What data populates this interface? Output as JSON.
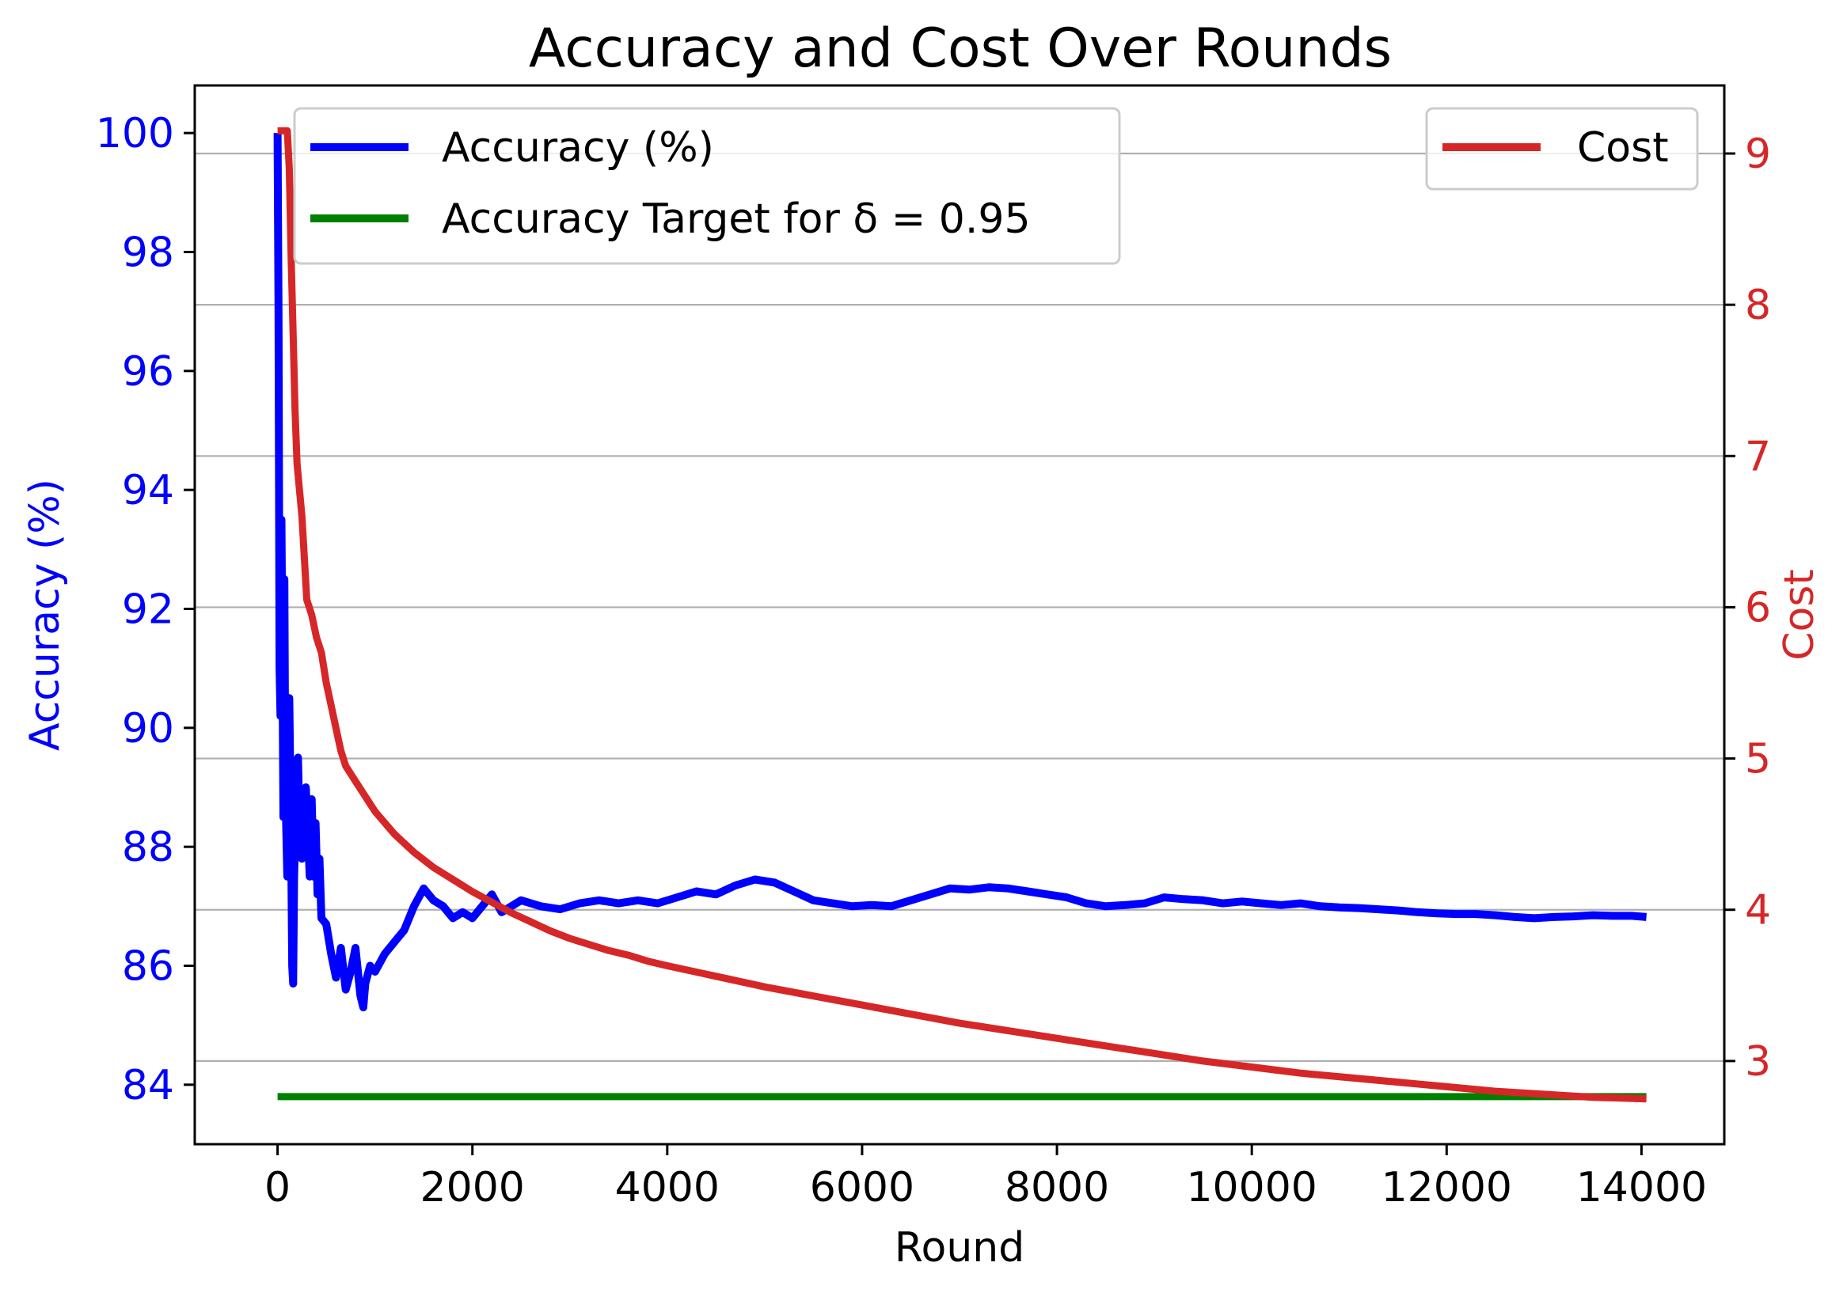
{
  "chart_data": {
    "type": "line",
    "title": "Accuracy and Cost Over Rounds",
    "xlabel": "Round",
    "ylabel_left": "Accuracy (%)",
    "ylabel_right": "Cost",
    "xlim": [
      -850,
      14850
    ],
    "ylim_left": [
      83.0,
      100.8
    ],
    "ylim_right": [
      2.45,
      9.45
    ],
    "x_ticks": [
      0,
      2000,
      4000,
      6000,
      8000,
      10000,
      12000,
      14000
    ],
    "x_tick_labels": [
      "0",
      "2000",
      "4000",
      "6000",
      "8000",
      "10000",
      "12000",
      "14000"
    ],
    "y_left_ticks": [
      84,
      86,
      88,
      90,
      92,
      94,
      96,
      98,
      100
    ],
    "y_left_tick_labels": [
      "84",
      "86",
      "88",
      "90",
      "92",
      "94",
      "96",
      "98",
      "100"
    ],
    "y_right_ticks": [
      3,
      4,
      5,
      6,
      7,
      8,
      9
    ],
    "y_right_tick_labels": [
      "3",
      "4",
      "5",
      "6",
      "7",
      "8",
      "9"
    ],
    "grid": "horizontal, right axis ticks",
    "legends": [
      {
        "placement": "upper-left",
        "entries": [
          "Accuracy (%)",
          "Accuracy Target for δ = 0.95"
        ]
      },
      {
        "placement": "upper-right",
        "entries": [
          "Cost"
        ]
      }
    ],
    "colors": {
      "accuracy": "#0000ff",
      "target": "#008000",
      "cost": "#d62728",
      "grid": "#b0b0b0"
    },
    "series": [
      {
        "name": "Accuracy (%)",
        "axis": "left",
        "color": "#0000ff",
        "points": [
          [
            0,
            100.0
          ],
          [
            10,
            97.0
          ],
          [
            20,
            91.0
          ],
          [
            30,
            90.2
          ],
          [
            40,
            93.5
          ],
          [
            50,
            91.0
          ],
          [
            60,
            88.5
          ],
          [
            70,
            92.5
          ],
          [
            80,
            89.0
          ],
          [
            100,
            87.5
          ],
          [
            120,
            90.5
          ],
          [
            140,
            88.0
          ],
          [
            150,
            86.0
          ],
          [
            160,
            85.7
          ],
          [
            170,
            87.5
          ],
          [
            190,
            88.8
          ],
          [
            210,
            89.5
          ],
          [
            230,
            88.0
          ],
          [
            250,
            87.8
          ],
          [
            270,
            88.3
          ],
          [
            290,
            89.0
          ],
          [
            310,
            88.3
          ],
          [
            330,
            87.5
          ],
          [
            350,
            88.8
          ],
          [
            370,
            87.5
          ],
          [
            390,
            88.4
          ],
          [
            410,
            87.2
          ],
          [
            430,
            87.8
          ],
          [
            450,
            86.8
          ],
          [
            500,
            86.7
          ],
          [
            550,
            86.2
          ],
          [
            600,
            85.8
          ],
          [
            650,
            86.3
          ],
          [
            700,
            85.6
          ],
          [
            750,
            85.9
          ],
          [
            800,
            86.3
          ],
          [
            850,
            85.5
          ],
          [
            880,
            85.3
          ],
          [
            900,
            85.7
          ],
          [
            950,
            86.0
          ],
          [
            1000,
            85.9
          ],
          [
            1100,
            86.2
          ],
          [
            1200,
            86.4
          ],
          [
            1300,
            86.6
          ],
          [
            1400,
            87.0
          ],
          [
            1500,
            87.3
          ],
          [
            1600,
            87.1
          ],
          [
            1700,
            87.0
          ],
          [
            1800,
            86.8
          ],
          [
            1900,
            86.9
          ],
          [
            2000,
            86.8
          ],
          [
            2100,
            87.0
          ],
          [
            2200,
            87.2
          ],
          [
            2300,
            86.9
          ],
          [
            2400,
            87.0
          ],
          [
            2500,
            87.1
          ],
          [
            2700,
            87.0
          ],
          [
            2900,
            86.95
          ],
          [
            3100,
            87.05
          ],
          [
            3300,
            87.1
          ],
          [
            3500,
            87.05
          ],
          [
            3700,
            87.1
          ],
          [
            3900,
            87.05
          ],
          [
            4100,
            87.15
          ],
          [
            4300,
            87.25
          ],
          [
            4500,
            87.2
          ],
          [
            4700,
            87.35
          ],
          [
            4900,
            87.45
          ],
          [
            5100,
            87.4
          ],
          [
            5300,
            87.25
          ],
          [
            5500,
            87.1
          ],
          [
            5700,
            87.05
          ],
          [
            5900,
            87.0
          ],
          [
            6100,
            87.02
          ],
          [
            6300,
            87.0
          ],
          [
            6500,
            87.1
          ],
          [
            6700,
            87.2
          ],
          [
            6900,
            87.3
          ],
          [
            7100,
            87.28
          ],
          [
            7300,
            87.32
          ],
          [
            7500,
            87.3
          ],
          [
            7700,
            87.25
          ],
          [
            7900,
            87.2
          ],
          [
            8100,
            87.15
          ],
          [
            8300,
            87.05
          ],
          [
            8500,
            87.0
          ],
          [
            8700,
            87.02
          ],
          [
            8900,
            87.05
          ],
          [
            9100,
            87.15
          ],
          [
            9300,
            87.12
          ],
          [
            9500,
            87.1
          ],
          [
            9700,
            87.05
          ],
          [
            9900,
            87.08
          ],
          [
            10100,
            87.05
          ],
          [
            10300,
            87.02
          ],
          [
            10500,
            87.05
          ],
          [
            10700,
            87.0
          ],
          [
            10900,
            86.98
          ],
          [
            11100,
            86.97
          ],
          [
            11300,
            86.95
          ],
          [
            11500,
            86.93
          ],
          [
            11700,
            86.9
          ],
          [
            11900,
            86.88
          ],
          [
            12100,
            86.87
          ],
          [
            12300,
            86.87
          ],
          [
            12500,
            86.85
          ],
          [
            12700,
            86.82
          ],
          [
            12900,
            86.8
          ],
          [
            13100,
            86.82
          ],
          [
            13300,
            86.83
          ],
          [
            13500,
            86.85
          ],
          [
            13700,
            86.84
          ],
          [
            13900,
            86.84
          ],
          [
            14050,
            86.82
          ]
        ]
      },
      {
        "name": "Accuracy Target for δ = 0.95",
        "axis": "left",
        "color": "#008000",
        "points": [
          [
            0,
            83.8
          ],
          [
            14050,
            83.8
          ]
        ]
      },
      {
        "name": "Cost",
        "axis": "right",
        "color": "#d62728",
        "points": [
          [
            0,
            9.15
          ],
          [
            50,
            9.15
          ],
          [
            100,
            9.15
          ],
          [
            120,
            8.9
          ],
          [
            140,
            8.3
          ],
          [
            160,
            7.8
          ],
          [
            180,
            7.3
          ],
          [
            200,
            6.95
          ],
          [
            250,
            6.6
          ],
          [
            300,
            6.05
          ],
          [
            350,
            5.95
          ],
          [
            400,
            5.8
          ],
          [
            450,
            5.7
          ],
          [
            500,
            5.5
          ],
          [
            550,
            5.35
          ],
          [
            600,
            5.2
          ],
          [
            650,
            5.05
          ],
          [
            700,
            4.95
          ],
          [
            800,
            4.85
          ],
          [
            900,
            4.75
          ],
          [
            1000,
            4.65
          ],
          [
            1200,
            4.5
          ],
          [
            1400,
            4.38
          ],
          [
            1600,
            4.28
          ],
          [
            1800,
            4.2
          ],
          [
            2000,
            4.12
          ],
          [
            2200,
            4.05
          ],
          [
            2400,
            3.98
          ],
          [
            2600,
            3.92
          ],
          [
            2800,
            3.86
          ],
          [
            3000,
            3.81
          ],
          [
            3200,
            3.77
          ],
          [
            3400,
            3.73
          ],
          [
            3600,
            3.7
          ],
          [
            3800,
            3.66
          ],
          [
            4000,
            3.63
          ],
          [
            4500,
            3.56
          ],
          [
            5000,
            3.49
          ],
          [
            5500,
            3.43
          ],
          [
            6000,
            3.37
          ],
          [
            6500,
            3.31
          ],
          [
            7000,
            3.25
          ],
          [
            7500,
            3.2
          ],
          [
            8000,
            3.15
          ],
          [
            8500,
            3.1
          ],
          [
            9000,
            3.05
          ],
          [
            9500,
            3.0
          ],
          [
            10000,
            2.96
          ],
          [
            10500,
            2.92
          ],
          [
            11000,
            2.89
          ],
          [
            11500,
            2.86
          ],
          [
            12000,
            2.83
          ],
          [
            12500,
            2.8
          ],
          [
            13000,
            2.78
          ],
          [
            13500,
            2.76
          ],
          [
            14050,
            2.75
          ]
        ]
      }
    ]
  }
}
